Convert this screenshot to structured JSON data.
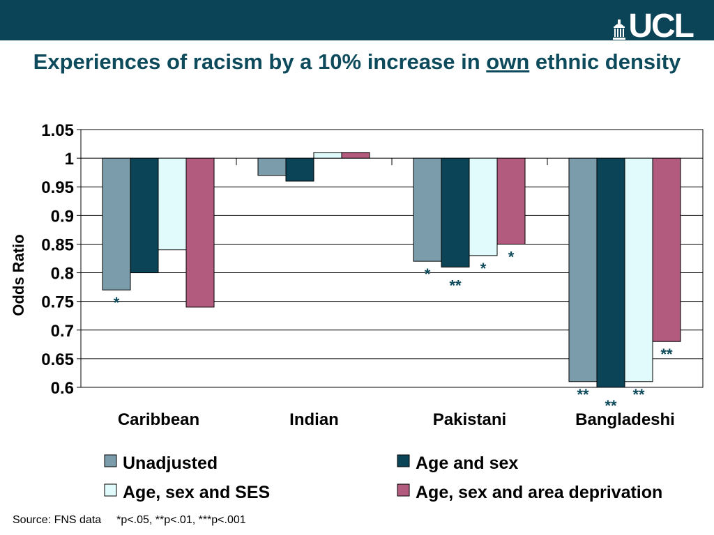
{
  "header": {
    "logo_text": "UCL",
    "colors": {
      "bar": "#0c4457",
      "title": "#0c4a5c",
      "logo": "#ffffff"
    }
  },
  "title": {
    "part1": "Experiences of racism by a 10% increase in ",
    "underlined": "own",
    "part2": " ethnic density"
  },
  "chart_data": {
    "type": "bar",
    "title": "Experiences of racism by a 10% increase in own ethnic density",
    "ylabel": "Odds Ratio",
    "xlabel": "",
    "ylim": [
      0.6,
      1.05
    ],
    "baseline": 1,
    "yticks": [
      "1.05",
      "1",
      "0.95",
      "0.9",
      "0.85",
      "0.8",
      "0.75",
      "0.7",
      "0.65",
      "0.6"
    ],
    "grid": true,
    "legend_position": "bottom",
    "categories": [
      "Caribbean",
      "Indian",
      "Pakistani",
      "Bangladeshi"
    ],
    "series": [
      {
        "name": "Unadjusted",
        "color": "#7b9caa",
        "values": [
          0.77,
          0.97,
          0.82,
          0.61
        ],
        "significance": [
          "*",
          "",
          "*",
          "**"
        ]
      },
      {
        "name": "Age and sex",
        "color": "#0c4457",
        "values": [
          0.8,
          0.96,
          0.81,
          0.6
        ],
        "significance": [
          "",
          "",
          "**",
          "**"
        ]
      },
      {
        "name": "Age, sex and SES",
        "color": "#e1fbfd",
        "values": [
          0.84,
          1.01,
          0.83,
          0.61
        ],
        "significance": [
          "",
          "",
          "*",
          "**"
        ]
      },
      {
        "name": "Age, sex and area deprivation",
        "color": "#b25b7f",
        "values": [
          0.74,
          1.01,
          0.85,
          0.68
        ],
        "significance": [
          "",
          "",
          "*",
          "**"
        ]
      }
    ],
    "annotation_color": "#0c4a5c"
  },
  "source": {
    "label": "Source: FNS data",
    "note": "*p<.05, **p<.01, ***p<.001"
  }
}
